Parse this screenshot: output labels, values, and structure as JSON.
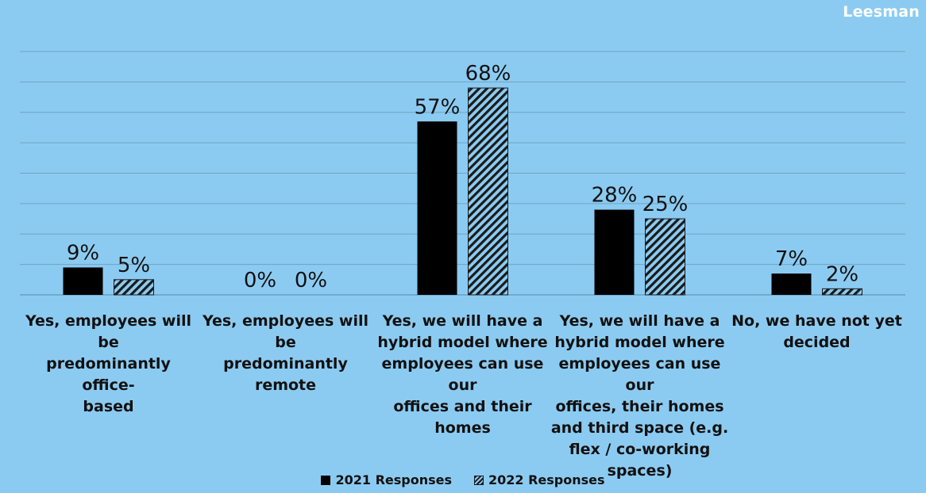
{
  "brand": "Leesman",
  "colors": {
    "background": "#8ccbf1",
    "series_2021": "#000000",
    "series_2022": "#1a1a1a"
  },
  "chart_data": {
    "type": "bar",
    "title": "",
    "xlabel": "",
    "ylabel": "",
    "ylim": [
      0,
      80
    ],
    "grid": true,
    "legend_position": "bottom",
    "categories": [
      "Yes, employees will be predominantly office-based",
      "Yes, employees will be predominantly remote",
      "Yes, we will have a hybrid model where employees can use our offices and their homes",
      "Yes, we will have a hybrid model where employees can use our offices, their homes and third space (e.g. flex / co-working spaces)",
      "No, we have not yet decided"
    ],
    "series": [
      {
        "name": "2021 Responses",
        "values": [
          9,
          0,
          57,
          28,
          7
        ],
        "labels": [
          "9%",
          "0%",
          "57%",
          "28%",
          "7%"
        ]
      },
      {
        "name": "2022 Responses",
        "values": [
          5,
          0,
          68,
          25,
          2
        ],
        "labels": [
          "5%",
          "0%",
          "68%",
          "25%",
          "2%"
        ]
      }
    ],
    "category_lines": [
      [
        "Yes, employees will be",
        "predominantly office-",
        "based"
      ],
      [
        "Yes, employees will be",
        "predominantly remote"
      ],
      [
        "Yes, we will have a",
        "hybrid model where",
        "employees can use our",
        "offices and their",
        "homes"
      ],
      [
        "Yes, we will have a",
        "hybrid model where",
        "employees can use our",
        "offices, their homes",
        "and third space (e.g.",
        "flex / co-working",
        "spaces)"
      ],
      [
        "No, we have not yet",
        "decided"
      ]
    ]
  }
}
